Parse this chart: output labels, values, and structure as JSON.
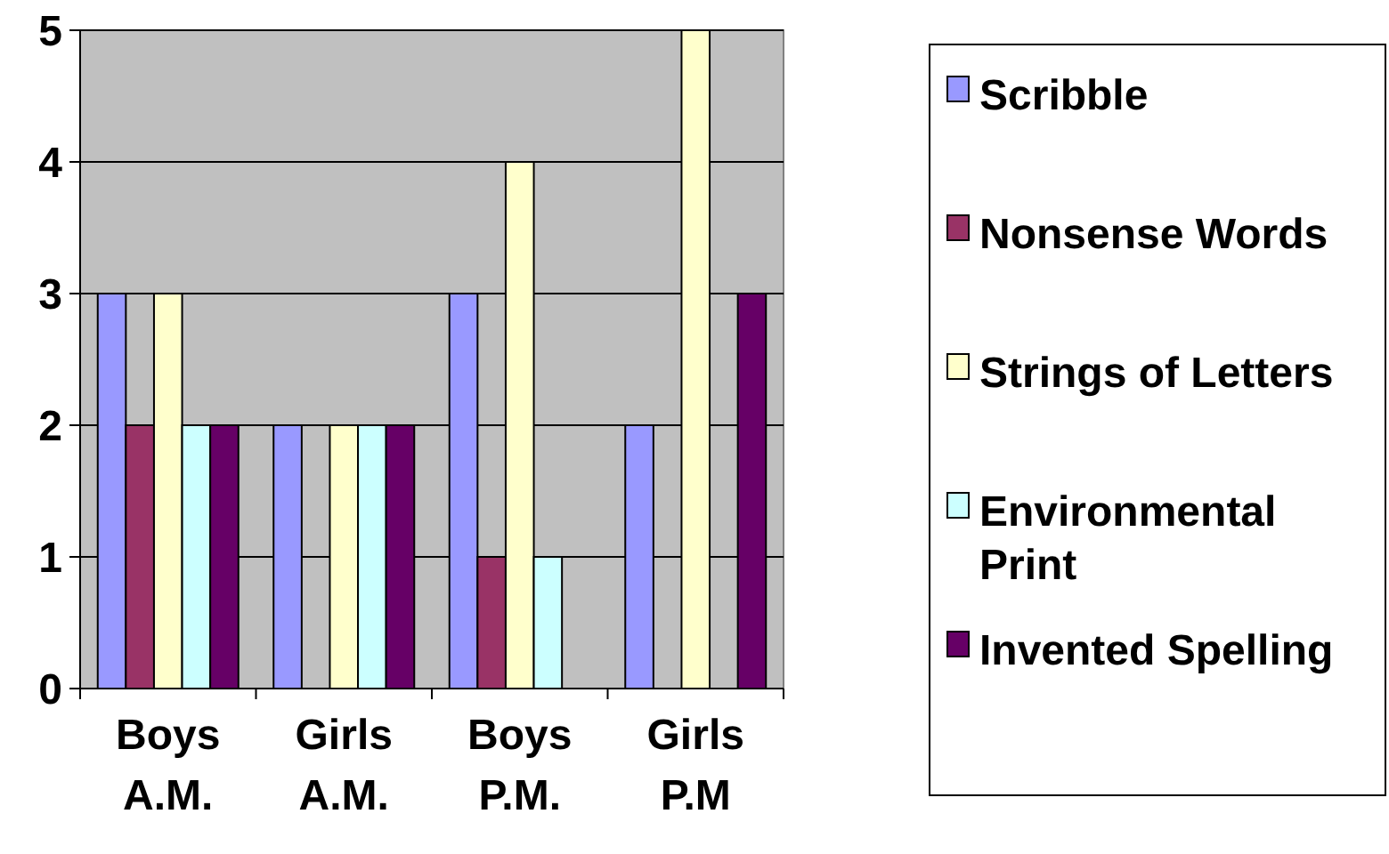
{
  "chart_data": {
    "type": "bar",
    "categories": [
      "Boys A.M.",
      "Girls A.M.",
      "Boys P.M.",
      "Girls P.M"
    ],
    "series": [
      {
        "name": "Scribble",
        "color": "#9999ff",
        "values": [
          3,
          2,
          3,
          2
        ]
      },
      {
        "name": "Nonsense Words",
        "color": "#993366",
        "values": [
          2,
          0,
          1,
          0
        ]
      },
      {
        "name": "Strings of Letters",
        "color": "#ffffcc",
        "values": [
          3,
          2,
          4,
          5
        ]
      },
      {
        "name": "Environmental Print",
        "color": "#ccffff",
        "values": [
          2,
          2,
          1,
          0
        ]
      },
      {
        "name": "Invented Spelling",
        "color": "#660066",
        "values": [
          2,
          2,
          0,
          3
        ]
      }
    ],
    "ylim": [
      0,
      5
    ],
    "yticks": [
      0,
      1,
      2,
      3,
      4,
      5
    ],
    "grid": "y",
    "legend": "right"
  }
}
